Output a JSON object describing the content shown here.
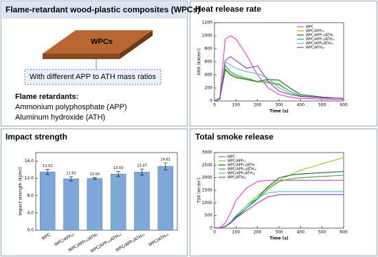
{
  "header": {
    "title": "Flame-retardant wood-plastic composites (WPCs)"
  },
  "intro": {
    "board_label": "WPCs",
    "note": "With different APP to ATH mass ratios",
    "retardants_title": "Flame retardants:",
    "retardants": [
      "Ammonium polyphosphate (APP)",
      "Aluminum hydroxide (ATH)"
    ]
  },
  "chart_data": [
    {
      "type": "line",
      "title": "Heat release rate",
      "x_label": "Time (s)",
      "y_label": "HRR (kW/m²)",
      "x": [
        0,
        25,
        50,
        75,
        100,
        150,
        200,
        250,
        300,
        350,
        400,
        500,
        600
      ],
      "xlim": [
        0,
        600
      ],
      "xticks": [
        0,
        100,
        200,
        300,
        400,
        500,
        600
      ],
      "ylim": [
        0,
        1200
      ],
      "yticks": [
        0,
        200,
        400,
        600,
        800,
        1000,
        1200
      ],
      "legend": "upper right",
      "series": [
        {
          "name": "WPC",
          "color": "#ff33cc",
          "values": [
            0,
            50,
            950,
            1000,
            950,
            700,
            400,
            200,
            100,
            60,
            40,
            30,
            20
          ]
        },
        {
          "name": "WPC/APP₂₀",
          "color": "#99cc00",
          "values": [
            0,
            30,
            500,
            420,
            380,
            330,
            290,
            300,
            260,
            150,
            80,
            50,
            40
          ]
        },
        {
          "name": "WPC/APP₁₅/ATH₅",
          "color": "#006633",
          "values": [
            0,
            30,
            480,
            400,
            360,
            330,
            300,
            330,
            320,
            200,
            100,
            60,
            40
          ]
        },
        {
          "name": "WPC/APP₁₀/ATH₁₀",
          "color": "#33aa33",
          "values": [
            0,
            30,
            550,
            450,
            400,
            350,
            300,
            280,
            250,
            150,
            80,
            50,
            40
          ]
        },
        {
          "name": "WPC/APP₅/ATH₁₅",
          "color": "#33cccc",
          "values": [
            0,
            40,
            600,
            550,
            500,
            450,
            420,
            350,
            200,
            120,
            70,
            50,
            40
          ]
        },
        {
          "name": "WPC/ATH₂₀",
          "color": "#9933cc",
          "values": [
            0,
            40,
            620,
            680,
            620,
            500,
            540,
            300,
            150,
            100,
            70,
            50,
            40
          ]
        }
      ]
    },
    {
      "type": "bar",
      "title": "Impact strength",
      "y_label": "Impact strength (KJ/m²)",
      "color": "#7fa8da",
      "categories": [
        "WPC",
        "WPC/APP₂₀",
        "WPC/APP₁₅/ATH₅",
        "WPC/APP₁₀/ATH₁₀",
        "WPC/APP₅/ATH₁₅",
        "WPC/ATH₂₀"
      ],
      "values": [
        13.52,
        11.92,
        12.0,
        13.03,
        13.47,
        14.81
      ],
      "value_labels": [
        "13.52",
        "11.92",
        "12.00",
        "13.03",
        "13.47",
        "14.81"
      ],
      "errors": [
        0.6,
        0.5,
        0.2,
        0.6,
        0.7,
        0.8
      ],
      "ylim": [
        0,
        18
      ],
      "yticks": [
        {
          "value": 0,
          "label": "0.0"
        },
        {
          "value": 4,
          "label": "4.0"
        },
        {
          "value": 8,
          "label": "8.0"
        },
        {
          "value": 12,
          "label": "12.0"
        },
        {
          "value": 16,
          "label": "16.0"
        }
      ]
    },
    {
      "type": "line",
      "title": "Total smoke release",
      "x_label": "Time (s)",
      "y_label": "TSR (m²/m²)",
      "x": [
        0,
        25,
        50,
        75,
        100,
        150,
        200,
        250,
        300,
        350,
        400,
        500,
        600
      ],
      "xlim": [
        0,
        600
      ],
      "xticks": [
        0,
        100,
        200,
        300,
        400,
        500,
        600
      ],
      "ylim": [
        0,
        3000
      ],
      "yticks": [
        0,
        500,
        1000,
        1500,
        2000,
        2500,
        3000
      ],
      "legend": "upper left",
      "series": [
        {
          "name": "WPC",
          "color": "#ff33cc",
          "values": [
            0,
            20,
            200,
            600,
            1100,
            1600,
            1850,
            1900,
            1900,
            1900,
            1900,
            1900,
            1900
          ]
        },
        {
          "name": "WPC/APP₂₀",
          "color": "#99cc00",
          "values": [
            0,
            10,
            80,
            250,
            500,
            900,
            1300,
            1600,
            1900,
            2100,
            2300,
            2550,
            2800
          ]
        },
        {
          "name": "WPC/APP₁₅/ATH₅",
          "color": "#006633",
          "values": [
            0,
            10,
            60,
            200,
            450,
            800,
            1200,
            1650,
            2000,
            2100,
            2150,
            2200,
            2250
          ]
        },
        {
          "name": "WPC/APP₁₀/ATH₁₀",
          "color": "#33aa33",
          "values": [
            0,
            10,
            60,
            200,
            400,
            800,
            1150,
            1550,
            1850,
            1950,
            2000,
            2050,
            2100
          ]
        },
        {
          "name": "WPC/APP₅/ATH₁₅",
          "color": "#33cccc",
          "values": [
            0,
            10,
            70,
            250,
            500,
            900,
            1200,
            1400,
            1450,
            1450,
            1450,
            1450,
            1450
          ]
        },
        {
          "name": "WPC/ATH₂₀",
          "color": "#9933cc",
          "values": [
            0,
            10,
            60,
            200,
            400,
            700,
            1000,
            1250,
            1320,
            1330,
            1330,
            1330,
            1330
          ]
        }
      ]
    }
  ]
}
